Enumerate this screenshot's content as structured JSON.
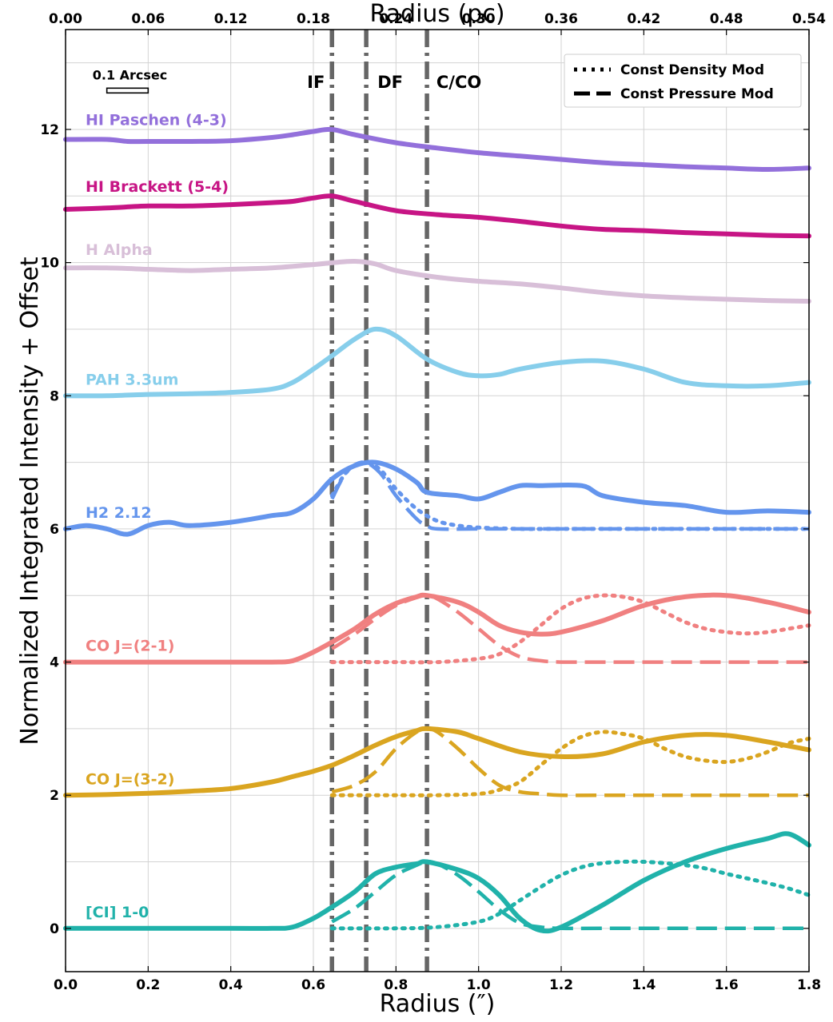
{
  "chart_data": {
    "type": "line",
    "xlabel": "Radius (″)",
    "ylabel": "Normalized Integrated Intensity + Offset",
    "x2label": "Radius (pc)",
    "xlim": [
      0.0,
      1.8
    ],
    "ylim": [
      -0.65,
      13.5
    ],
    "x_ticks": [
      "0.0",
      "0.2",
      "0.4",
      "0.6",
      "0.8",
      "1.0",
      "1.2",
      "1.4",
      "1.6",
      "1.8"
    ],
    "x_tick_values": [
      0.0,
      0.2,
      0.4,
      0.6,
      0.8,
      1.0,
      1.2,
      1.4,
      1.6,
      1.8
    ],
    "x2_ticks": [
      "0.00",
      "0.06",
      "0.12",
      "0.18",
      "0.24",
      "0.30",
      "0.36",
      "0.42",
      "0.48",
      "0.54"
    ],
    "x2_tick_values": [
      0.0,
      0.2,
      0.4,
      0.6,
      0.8,
      1.0,
      1.2,
      1.4,
      1.6,
      1.8
    ],
    "y_ticks": [
      "0",
      "2",
      "4",
      "6",
      "8",
      "10",
      "12"
    ],
    "y_tick_values": [
      0,
      2,
      4,
      6,
      8,
      10,
      12
    ],
    "y_minor_grid": [
      1,
      3,
      5,
      7,
      9,
      11,
      13
    ],
    "grid": true,
    "fronts": [
      {
        "label": "IF",
        "x": 0.645
      },
      {
        "label": "DF",
        "x": 0.728
      },
      {
        "label": "C/CO",
        "x": 0.875
      }
    ],
    "scale_bar": {
      "label": "0.1 Arcsec",
      "x_start": 0.1,
      "x_end": 0.2,
      "y": 12.8
    },
    "legend": {
      "position": "top-right",
      "entries": [
        {
          "label": "Const Density Mod",
          "style": "dotted"
        },
        {
          "label": "Const Pressure Mod",
          "style": "dashed"
        }
      ]
    },
    "series": [
      {
        "name": "HI Paschen (4-3)",
        "color": "#9370DB",
        "label_y": 12.15,
        "x": [
          0,
          0.1,
          0.15,
          0.2,
          0.3,
          0.4,
          0.5,
          0.55,
          0.6,
          0.645,
          0.7,
          0.8,
          0.9,
          1.0,
          1.1,
          1.2,
          1.3,
          1.4,
          1.5,
          1.6,
          1.7,
          1.8
        ],
        "y": [
          11.85,
          11.85,
          11.82,
          11.82,
          11.82,
          11.83,
          11.88,
          11.92,
          11.97,
          12.0,
          11.92,
          11.8,
          11.72,
          11.65,
          11.6,
          11.55,
          11.5,
          11.47,
          11.44,
          11.42,
          11.4,
          11.42
        ]
      },
      {
        "name": "HI Brackett (5-4)",
        "color": "#C71585",
        "label_y": 11.15,
        "x": [
          0,
          0.1,
          0.2,
          0.3,
          0.4,
          0.5,
          0.55,
          0.6,
          0.645,
          0.7,
          0.8,
          0.9,
          1.0,
          1.1,
          1.2,
          1.3,
          1.4,
          1.5,
          1.6,
          1.7,
          1.8
        ],
        "y": [
          10.8,
          10.82,
          10.85,
          10.85,
          10.87,
          10.9,
          10.92,
          10.97,
          11.0,
          10.92,
          10.78,
          10.72,
          10.68,
          10.62,
          10.55,
          10.5,
          10.48,
          10.45,
          10.43,
          10.41,
          10.4
        ]
      },
      {
        "name": "H Alpha",
        "color": "#D8BFD8",
        "label_y": 10.2,
        "x": [
          0,
          0.1,
          0.2,
          0.3,
          0.4,
          0.5,
          0.6,
          0.65,
          0.7,
          0.75,
          0.8,
          0.9,
          1.0,
          1.1,
          1.2,
          1.3,
          1.4,
          1.5,
          1.6,
          1.7,
          1.8
        ],
        "y": [
          9.92,
          9.92,
          9.9,
          9.88,
          9.9,
          9.92,
          9.97,
          10.0,
          10.02,
          9.98,
          9.88,
          9.78,
          9.72,
          9.68,
          9.62,
          9.55,
          9.5,
          9.47,
          9.45,
          9.43,
          9.42
        ]
      },
      {
        "name": "PAH 3.3um",
        "color": "#87CEEB",
        "label_y": 8.25,
        "x": [
          0,
          0.1,
          0.2,
          0.3,
          0.4,
          0.5,
          0.55,
          0.6,
          0.645,
          0.7,
          0.75,
          0.8,
          0.875,
          0.95,
          1.0,
          1.05,
          1.1,
          1.2,
          1.3,
          1.4,
          1.5,
          1.6,
          1.7,
          1.8
        ],
        "y": [
          8.0,
          8.0,
          8.02,
          8.03,
          8.05,
          8.1,
          8.2,
          8.4,
          8.6,
          8.85,
          9.0,
          8.9,
          8.55,
          8.35,
          8.3,
          8.32,
          8.4,
          8.5,
          8.52,
          8.4,
          8.2,
          8.15,
          8.15,
          8.2
        ]
      },
      {
        "name": "H2 2.12",
        "color": "#6495ED",
        "label_y": 6.25,
        "x": [
          0,
          0.05,
          0.1,
          0.15,
          0.2,
          0.25,
          0.3,
          0.4,
          0.5,
          0.55,
          0.6,
          0.645,
          0.7,
          0.75,
          0.8,
          0.85,
          0.875,
          0.95,
          1.0,
          1.05,
          1.1,
          1.15,
          1.25,
          1.3,
          1.4,
          1.5,
          1.6,
          1.7,
          1.8
        ],
        "y": [
          6.0,
          6.05,
          6.0,
          5.92,
          6.05,
          6.1,
          6.05,
          6.1,
          6.2,
          6.25,
          6.45,
          6.75,
          6.95,
          7.0,
          6.9,
          6.7,
          6.55,
          6.5,
          6.45,
          6.55,
          6.65,
          6.65,
          6.65,
          6.5,
          6.4,
          6.35,
          6.25,
          6.27,
          6.25
        ]
      },
      {
        "name": "H2 2.12 Const Density Mod",
        "color": "#6495ED",
        "style": "dotted",
        "x": [
          0.645,
          0.68,
          0.72,
          0.76,
          0.8,
          0.85,
          0.9,
          0.95,
          1.0,
          1.1,
          1.2,
          1.5,
          1.8
        ],
        "y": [
          6.5,
          6.85,
          7.0,
          6.9,
          6.6,
          6.3,
          6.12,
          6.05,
          6.02,
          6.0,
          6.0,
          6.0,
          6.0
        ]
      },
      {
        "name": "H2 2.12 Const Pressure Mod",
        "color": "#6495ED",
        "style": "dashed",
        "x": [
          0.645,
          0.68,
          0.72,
          0.76,
          0.8,
          0.85,
          0.875,
          0.9,
          1.0,
          1.2,
          1.5,
          1.8
        ],
        "y": [
          6.45,
          6.85,
          7.0,
          6.85,
          6.5,
          6.15,
          6.05,
          6.0,
          6.0,
          6.0,
          6.0,
          6.0
        ]
      },
      {
        "name": "CO J=(2-1)",
        "color": "#F08080",
        "label_y": 4.25,
        "x": [
          0,
          0.2,
          0.4,
          0.5,
          0.55,
          0.6,
          0.645,
          0.7,
          0.75,
          0.8,
          0.85,
          0.875,
          0.95,
          1.0,
          1.05,
          1.1,
          1.15,
          1.2,
          1.3,
          1.4,
          1.5,
          1.6,
          1.7,
          1.8
        ],
        "y": [
          4.0,
          4.0,
          4.0,
          4.0,
          4.02,
          4.15,
          4.3,
          4.5,
          4.72,
          4.88,
          4.98,
          5.0,
          4.9,
          4.75,
          4.55,
          4.45,
          4.42,
          4.45,
          4.62,
          4.85,
          4.98,
          5.0,
          4.9,
          4.75
        ]
      },
      {
        "name": "CO J=(2-1) Const Density Mod",
        "color": "#F08080",
        "style": "dotted",
        "x": [
          0.645,
          0.8,
          0.9,
          1.0,
          1.05,
          1.1,
          1.15,
          1.2,
          1.25,
          1.3,
          1.35,
          1.4,
          1.45,
          1.5,
          1.55,
          1.6,
          1.65,
          1.7,
          1.75,
          1.8
        ],
        "y": [
          4.0,
          4.0,
          4.0,
          4.05,
          4.12,
          4.3,
          4.55,
          4.8,
          4.95,
          5.0,
          4.98,
          4.9,
          4.75,
          4.6,
          4.5,
          4.45,
          4.43,
          4.45,
          4.5,
          4.55
        ]
      },
      {
        "name": "CO J=(2-1) Const Pressure Mod",
        "color": "#F08080",
        "style": "dashed",
        "x": [
          0.645,
          0.7,
          0.75,
          0.8,
          0.85,
          0.875,
          0.9,
          0.95,
          1.0,
          1.05,
          1.1,
          1.15,
          1.2,
          1.3,
          1.5,
          1.8
        ],
        "y": [
          4.2,
          4.42,
          4.65,
          4.85,
          4.97,
          5.0,
          4.95,
          4.75,
          4.5,
          4.25,
          4.08,
          4.02,
          4.0,
          4.0,
          4.0,
          4.0
        ]
      },
      {
        "name": "CO J=(3-2)",
        "color": "#DAA520",
        "label_y": 2.25,
        "x": [
          0,
          0.1,
          0.2,
          0.3,
          0.4,
          0.5,
          0.55,
          0.6,
          0.645,
          0.7,
          0.75,
          0.8,
          0.85,
          0.875,
          0.95,
          1.0,
          1.1,
          1.2,
          1.3,
          1.4,
          1.5,
          1.6,
          1.7,
          1.8
        ],
        "y": [
          2.0,
          2.01,
          2.03,
          2.06,
          2.1,
          2.2,
          2.28,
          2.36,
          2.45,
          2.6,
          2.75,
          2.88,
          2.97,
          3.0,
          2.95,
          2.85,
          2.65,
          2.58,
          2.62,
          2.8,
          2.9,
          2.9,
          2.8,
          2.68
        ]
      },
      {
        "name": "CO J=(3-2) Const Density Mod",
        "color": "#DAA520",
        "style": "dotted",
        "x": [
          0.645,
          0.8,
          0.9,
          1.0,
          1.05,
          1.1,
          1.15,
          1.2,
          1.25,
          1.3,
          1.35,
          1.4,
          1.45,
          1.5,
          1.55,
          1.6,
          1.65,
          1.7,
          1.75,
          1.8
        ],
        "y": [
          2.0,
          2.0,
          2.0,
          2.02,
          2.08,
          2.2,
          2.45,
          2.7,
          2.88,
          2.95,
          2.92,
          2.85,
          2.7,
          2.58,
          2.52,
          2.5,
          2.55,
          2.65,
          2.78,
          2.85
        ]
      },
      {
        "name": "CO J=(3-2) Const Pressure Mod",
        "color": "#DAA520",
        "style": "dashed",
        "x": [
          0.645,
          0.7,
          0.75,
          0.8,
          0.85,
          0.875,
          0.9,
          0.95,
          1.0,
          1.05,
          1.1,
          1.15,
          1.2,
          1.3,
          1.5,
          1.8
        ],
        "y": [
          2.05,
          2.15,
          2.35,
          2.7,
          2.95,
          3.0,
          2.95,
          2.7,
          2.4,
          2.15,
          2.05,
          2.02,
          2.0,
          2.0,
          2.0,
          2.0
        ]
      },
      {
        "name": "[CI] 1-0",
        "color": "#20B2AA",
        "label_y": 0.25,
        "x": [
          0,
          0.2,
          0.4,
          0.5,
          0.55,
          0.6,
          0.645,
          0.7,
          0.75,
          0.8,
          0.85,
          0.875,
          0.95,
          1.0,
          1.05,
          1.1,
          1.15,
          1.2,
          1.3,
          1.4,
          1.5,
          1.6,
          1.7,
          1.75,
          1.8
        ],
        "y": [
          0.0,
          0.0,
          0.0,
          0.0,
          0.02,
          0.15,
          0.32,
          0.55,
          0.82,
          0.92,
          0.97,
          1.0,
          0.88,
          0.75,
          0.5,
          0.15,
          -0.03,
          0.02,
          0.35,
          0.72,
          1.0,
          1.2,
          1.35,
          1.42,
          1.25
        ]
      },
      {
        "name": "[CI] 1-0 Const Density Mod",
        "color": "#20B2AA",
        "style": "dotted",
        "x": [
          0.645,
          0.8,
          0.9,
          1.0,
          1.05,
          1.1,
          1.15,
          1.2,
          1.25,
          1.3,
          1.35,
          1.4,
          1.45,
          1.5,
          1.55,
          1.6,
          1.65,
          1.7,
          1.75,
          1.8
        ],
        "y": [
          0.0,
          0.0,
          0.02,
          0.1,
          0.22,
          0.42,
          0.62,
          0.8,
          0.92,
          0.98,
          1.0,
          1.0,
          0.98,
          0.95,
          0.9,
          0.82,
          0.75,
          0.68,
          0.6,
          0.5
        ]
      },
      {
        "name": "[CI] 1-0 Const Pressure Mod",
        "color": "#20B2AA",
        "style": "dashed",
        "x": [
          0.645,
          0.7,
          0.75,
          0.8,
          0.85,
          0.875,
          0.9,
          0.95,
          1.0,
          1.05,
          1.1,
          1.15,
          1.2,
          1.3,
          1.5,
          1.8
        ],
        "y": [
          0.1,
          0.3,
          0.55,
          0.8,
          0.95,
          1.0,
          0.97,
          0.8,
          0.55,
          0.28,
          0.08,
          0.02,
          0.0,
          0.0,
          0.0,
          0.0
        ]
      }
    ]
  }
}
